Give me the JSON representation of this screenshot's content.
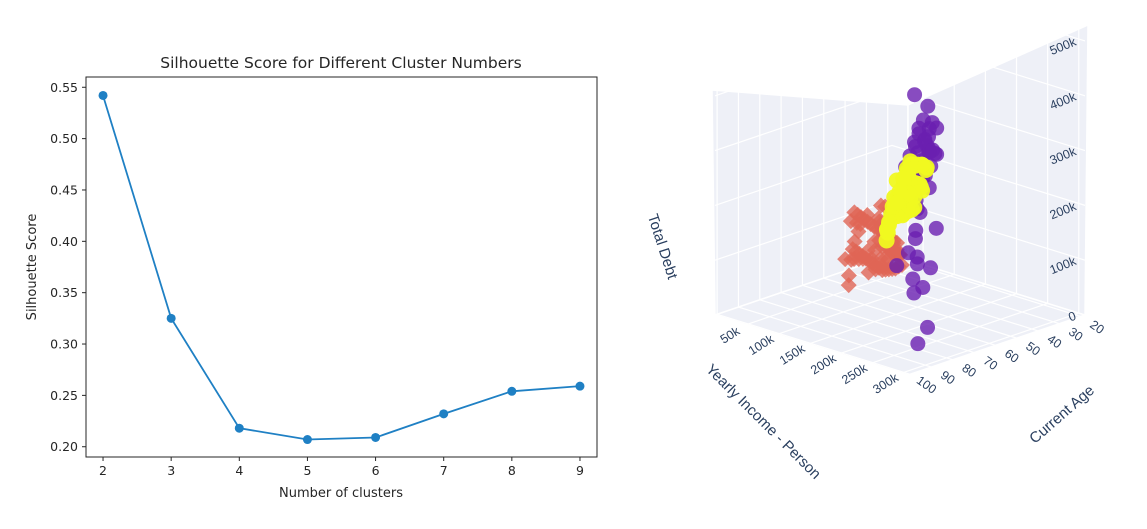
{
  "colors": {
    "line": "#1f80c4",
    "cluster_purple": "#6a1fb0",
    "cluster_yellow": "#f0f921",
    "cluster_salmon": "#e06555",
    "scene_bg": "#eef0f7",
    "grid": "#ffffff",
    "axis_text": "#2a3f5f"
  },
  "chart_data": [
    {
      "type": "line",
      "title": "Silhouette Score for Different Cluster Numbers",
      "xlabel": "Number of clusters",
      "ylabel": "Silhouette Score",
      "x": [
        2,
        3,
        4,
        5,
        6,
        7,
        8,
        9
      ],
      "y": [
        0.542,
        0.325,
        0.218,
        0.207,
        0.209,
        0.232,
        0.254,
        0.259
      ],
      "xlim": [
        1.75,
        9.25
      ],
      "ylim": [
        0.19,
        0.56
      ],
      "xticks": [
        "2",
        "3",
        "4",
        "5",
        "6",
        "7",
        "8",
        "9"
      ],
      "yticks": [
        "0.20",
        "0.25",
        "0.30",
        "0.35",
        "0.40",
        "0.45",
        "0.50",
        "0.55"
      ],
      "grid": false,
      "marker": "circle"
    },
    {
      "type": "scatter",
      "projection": "3d",
      "axis_titles": {
        "z": "Total Debt",
        "y": "Yearly Income - Person",
        "x": "Current Age"
      },
      "z_ticks": [
        "0",
        "100k",
        "200k",
        "300k",
        "400k",
        "500k"
      ],
      "y_ticks": [
        "50k",
        "100k",
        "150k",
        "200k",
        "250k",
        "300k"
      ],
      "x_ticks": [
        "20",
        "30",
        "40",
        "50",
        "60",
        "70",
        "80",
        "90",
        "100"
      ],
      "ranges": {
        "age": [
          18,
          101
        ],
        "income": [
          0,
          310000
        ],
        "debt": [
          0,
          520000
        ]
      },
      "series": [
        {
          "marker": "circle",
          "color": "#6a1fb0",
          "points": [
            [
              95,
              300000,
              500000
            ],
            [
              45,
              150000,
              360000
            ],
            [
              50,
              160000,
              345000
            ],
            [
              55,
              170000,
              340000
            ],
            [
              60,
              180000,
              325000
            ],
            [
              65,
              190000,
              310000
            ],
            [
              70,
              200000,
              300000
            ],
            [
              75,
              210000,
              260000
            ],
            [
              40,
              140000,
              320000
            ],
            [
              35,
              130000,
              300000
            ],
            [
              58,
              175000,
              280000
            ],
            [
              62,
              200000,
              270000
            ],
            [
              68,
              210000,
              240000
            ],
            [
              72,
              230000,
              230000
            ],
            [
              80,
              250000,
              200000
            ],
            [
              85,
              270000,
              180000
            ],
            [
              90,
              280000,
              150000
            ],
            [
              48,
              165000,
              260000
            ],
            [
              52,
              170000,
              250000
            ],
            [
              56,
              190000,
              240000
            ],
            [
              66,
              205000,
              220000
            ],
            [
              74,
              230000,
              200000
            ],
            [
              82,
              260000,
              160000
            ],
            [
              88,
              275000,
              120000
            ],
            [
              78,
              255000,
              110000
            ],
            [
              70,
              240000,
              130000
            ],
            [
              60,
              215000,
              180000
            ],
            [
              54,
              195000,
              300000
            ],
            [
              46,
              155000,
              285000
            ],
            [
              44,
              148000,
              275000
            ],
            [
              50,
              170000,
              290000
            ],
            [
              58,
              185000,
              290000
            ],
            [
              64,
              195000,
              280000
            ],
            [
              38,
              125000,
              270000
            ],
            [
              42,
              135000,
              290000
            ],
            [
              47,
              158000,
              310000
            ],
            [
              53,
              172000,
              315000
            ],
            [
              59,
              182000,
              305000
            ],
            [
              63,
              188000,
              295000
            ],
            [
              67,
              198000,
              285000
            ],
            [
              71,
              208000,
              270000
            ],
            [
              49,
              166000,
              330000
            ],
            [
              57,
              177000,
              335000
            ],
            [
              61,
              185000,
              320000
            ],
            [
              86,
              290000,
              60000
            ],
            [
              92,
              295000,
              40000
            ],
            [
              30,
              110000,
              240000
            ],
            [
              34,
              120000,
              255000
            ],
            [
              76,
              225000,
              160000
            ],
            [
              80,
              220000,
              140000
            ]
          ]
        },
        {
          "marker": "circle",
          "color": "#f0f921",
          "points": [
            [
              40,
              120000,
              200000
            ],
            [
              42,
              125000,
              205000
            ],
            [
              44,
              130000,
              210000
            ],
            [
              46,
              135000,
              215000
            ],
            [
              48,
              140000,
              220000
            ],
            [
              50,
              145000,
              225000
            ],
            [
              52,
              150000,
              230000
            ],
            [
              54,
              155000,
              235000
            ],
            [
              56,
              160000,
              240000
            ],
            [
              58,
              165000,
              245000
            ],
            [
              60,
              170000,
              250000
            ],
            [
              62,
              175000,
              245000
            ],
            [
              64,
              180000,
              240000
            ],
            [
              66,
              185000,
              230000
            ],
            [
              68,
              190000,
              220000
            ],
            [
              70,
              195000,
              210000
            ],
            [
              45,
              140000,
              250000
            ],
            [
              50,
              150000,
              260000
            ],
            [
              55,
              160000,
              270000
            ],
            [
              60,
              170000,
              265000
            ],
            [
              65,
              180000,
              255000
            ],
            [
              70,
              190000,
              240000
            ],
            [
              40,
              130000,
              230000
            ],
            [
              42,
              138000,
              240000
            ],
            [
              47,
              148000,
              255000
            ],
            [
              53,
              158000,
              265000
            ],
            [
              57,
              165000,
              275000
            ],
            [
              61,
              172000,
              270000
            ],
            [
              38,
              115000,
              190000
            ],
            [
              36,
              110000,
              180000
            ],
            [
              44,
              125000,
              185000
            ],
            [
              48,
              132000,
              190000
            ],
            [
              52,
              140000,
              195000
            ],
            [
              56,
              148000,
              200000
            ],
            [
              60,
              155000,
              205000
            ],
            [
              64,
              162000,
              210000
            ],
            [
              68,
              170000,
              200000
            ],
            [
              72,
              180000,
              190000
            ],
            [
              74,
              185000,
              180000
            ],
            [
              76,
              190000,
              170000
            ],
            [
              50,
              135000,
              170000
            ],
            [
              55,
              145000,
              175000
            ],
            [
              60,
              152000,
              180000
            ],
            [
              65,
              160000,
              185000
            ],
            [
              70,
              170000,
              175000
            ],
            [
              46,
              128000,
              165000
            ],
            [
              42,
              118000,
              160000
            ],
            [
              66,
              172000,
              260000
            ],
            [
              58,
              150000,
              215000
            ],
            [
              62,
              160000,
              222000
            ],
            [
              66,
              168000,
              228000
            ],
            [
              54,
              142000,
              210000
            ],
            [
              48,
              128000,
              205000
            ],
            [
              46,
              120000,
              195000
            ],
            [
              43,
              112000,
              185000
            ],
            [
              72,
              186000,
              225000
            ],
            [
              76,
              194000,
              205000
            ],
            [
              78,
              198000,
              195000
            ],
            [
              59,
              170000,
              285000
            ],
            [
              63,
              178000,
              280000
            ],
            [
              67,
              186000,
              270000
            ],
            [
              71,
              194000,
              255000
            ],
            [
              74,
              200000,
              240000
            ]
          ]
        },
        {
          "marker": "diamond",
          "color": "#e06555",
          "points": [
            [
              20,
              20000,
              10000
            ],
            [
              22,
              25000,
              15000
            ],
            [
              24,
              30000,
              20000
            ],
            [
              26,
              35000,
              25000
            ],
            [
              28,
              40000,
              30000
            ],
            [
              30,
              45000,
              35000
            ],
            [
              32,
              50000,
              40000
            ],
            [
              34,
              55000,
              45000
            ],
            [
              36,
              60000,
              50000
            ],
            [
              38,
              65000,
              60000
            ],
            [
              40,
              70000,
              70000
            ],
            [
              42,
              75000,
              80000
            ],
            [
              44,
              80000,
              90000
            ],
            [
              46,
              85000,
              100000
            ],
            [
              48,
              90000,
              110000
            ],
            [
              50,
              95000,
              120000
            ],
            [
              52,
              100000,
              130000
            ],
            [
              54,
              105000,
              140000
            ],
            [
              56,
              110000,
              150000
            ],
            [
              58,
              115000,
              160000
            ],
            [
              25,
              40000,
              5000
            ],
            [
              28,
              45000,
              8000
            ],
            [
              31,
              50000,
              10000
            ],
            [
              34,
              55000,
              15000
            ],
            [
              37,
              60000,
              20000
            ],
            [
              40,
              65000,
              25000
            ],
            [
              43,
              70000,
              30000
            ],
            [
              46,
              75000,
              40000
            ],
            [
              49,
              80000,
              50000
            ],
            [
              52,
              85000,
              60000
            ],
            [
              55,
              90000,
              70000
            ],
            [
              58,
              95000,
              80000
            ],
            [
              61,
              100000,
              90000
            ],
            [
              64,
              105000,
              100000
            ],
            [
              67,
              110000,
              110000
            ],
            [
              70,
              115000,
              120000
            ],
            [
              20,
              15000,
              30000
            ],
            [
              23,
              20000,
              40000
            ],
            [
              26,
              25000,
              50000
            ],
            [
              29,
              30000,
              60000
            ],
            [
              32,
              35000,
              70000
            ],
            [
              35,
              40000,
              80000
            ],
            [
              38,
              45000,
              90000
            ],
            [
              41,
              50000,
              100000
            ],
            [
              44,
              55000,
              110000
            ],
            [
              47,
              60000,
              120000
            ],
            [
              50,
              65000,
              130000
            ],
            [
              53,
              70000,
              140000
            ],
            [
              56,
              75000,
              150000
            ],
            [
              59,
              80000,
              160000
            ],
            [
              30,
              30000,
              20000
            ],
            [
              35,
              40000,
              30000
            ],
            [
              45,
              60000,
              50000
            ],
            [
              55,
              80000,
              70000
            ],
            [
              65,
              100000,
              90000
            ],
            [
              75,
              120000,
              110000
            ],
            [
              60,
              90000,
              130000
            ],
            [
              50,
              70000,
              140000
            ],
            [
              42,
              55000,
              60000
            ],
            [
              38,
              48000,
              70000
            ],
            [
              33,
              42000,
              50000
            ],
            [
              27,
              33000,
              45000
            ],
            [
              62,
              100000,
              150000
            ],
            [
              66,
              108000,
              160000
            ],
            [
              70,
              112000,
              170000
            ],
            [
              48,
              85000,
              160000
            ],
            [
              44,
              78000,
              150000
            ],
            [
              40,
              72000,
              140000
            ],
            [
              36,
              66000,
              120000
            ],
            [
              72,
              125000,
              140000
            ],
            [
              78,
              140000,
              120000
            ],
            [
              82,
              150000,
              100000
            ],
            [
              85,
              160000,
              90000
            ],
            [
              68,
              118000,
              100000
            ],
            [
              58,
              98000,
              95000
            ],
            [
              52,
              88000,
              100000
            ],
            [
              46,
              80000,
              80000
            ],
            [
              24,
              22000,
              25000
            ],
            [
              21,
              18000,
              20000
            ],
            [
              28,
              28000,
              15000
            ],
            [
              33,
              36000,
              12000
            ],
            [
              38,
              42000,
              15000
            ],
            [
              43,
              48000,
              18000
            ]
          ]
        }
      ]
    }
  ]
}
